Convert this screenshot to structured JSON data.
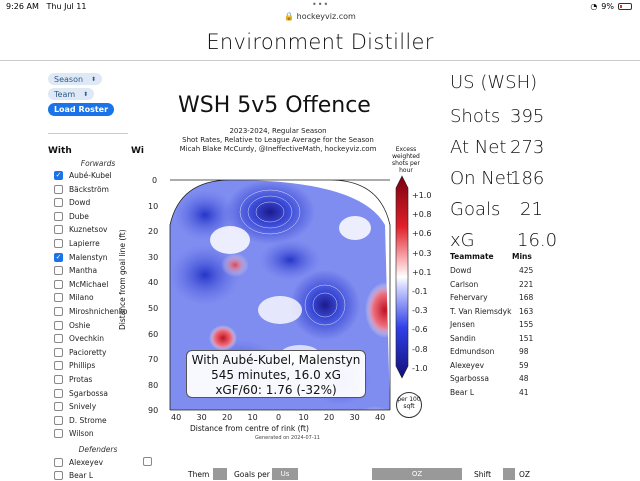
{
  "status": {
    "time": "9:26 AM",
    "date": "Thu Jul 11",
    "battery": "9%",
    "dots": "•••"
  },
  "browser": {
    "url": "hockeyviz.com"
  },
  "page": {
    "title": "Environment Distiller"
  },
  "controls": {
    "season": "Season",
    "team": "Team",
    "load_roster": "Load Roster"
  },
  "table_headers": {
    "with": "With",
    "without": "Wi"
  },
  "sections": {
    "forwards": "Forwards",
    "defenders": "Defenders"
  },
  "forwards": [
    {
      "name": "Aubé-Kubel",
      "checked": true
    },
    {
      "name": "Bäckström",
      "checked": false
    },
    {
      "name": "Dowd",
      "checked": false
    },
    {
      "name": "Dube",
      "checked": false
    },
    {
      "name": "Kuznetsov",
      "checked": false
    },
    {
      "name": "Lapierre",
      "checked": false
    },
    {
      "name": "Malenstyn",
      "checked": true
    },
    {
      "name": "Mantha",
      "checked": false
    },
    {
      "name": "McMichael",
      "checked": false
    },
    {
      "name": "Milano",
      "checked": false
    },
    {
      "name": "Miroshnichenko",
      "checked": false
    },
    {
      "name": "Oshie",
      "checked": false
    },
    {
      "name": "Ovechkin",
      "checked": false
    },
    {
      "name": "Pacioretty",
      "checked": false
    },
    {
      "name": "Phillips",
      "checked": false
    },
    {
      "name": "Protas",
      "checked": false
    },
    {
      "name": "Sgarbossa",
      "checked": false
    },
    {
      "name": "Snively",
      "checked": false
    },
    {
      "name": "D. Strome",
      "checked": false
    },
    {
      "name": "Wilson",
      "checked": false
    }
  ],
  "defenders": [
    {
      "name": "Alexeyev",
      "checked": false
    },
    {
      "name": "Bear L",
      "checked": false
    }
  ],
  "chart": {
    "title": "WSH 5v5 Offence",
    "subtitle1": "2023-2024, Regular Season",
    "subtitle2": "Shot Rates, Relative to League Average for the Season",
    "subtitle3": "Micah Blake McCurdy, @IneffectiveMath, hockeyviz.com",
    "cbar_title": "Excess weighted shots per hour",
    "ylabel": "Distance from goal line (ft)",
    "xlabel": "Distance from centre of rink (ft)",
    "generated": "Generated on 2024-07-11",
    "per100": "per 100 sqft",
    "info1": "With Aubé-Kubel, Malenstyn",
    "info2": "545 minutes, 16.0 xG",
    "info3": "xGF/60: 1.76 (-32%)",
    "colors": {
      "positive": "#d7191c",
      "negative": "#2c3ef0",
      "neutral": "#ffffff"
    }
  },
  "chart_data": {
    "type": "heatmap",
    "title": "WSH 5v5 Offence",
    "xlabel": "Distance from centre of rink (ft)",
    "ylabel": "Distance from goal line (ft)",
    "x_ticks": [
      "40",
      "30",
      "20",
      "10",
      "0",
      "10",
      "20",
      "30",
      "40"
    ],
    "y_ticks": [
      "0",
      "10",
      "20",
      "30",
      "40",
      "50",
      "60",
      "70",
      "80",
      "90"
    ],
    "colorbar_ticks": [
      "+1.0",
      "+0.8",
      "+0.6",
      "+0.3",
      "+0.1",
      "-0.1",
      "-0.3",
      "-0.6",
      "-0.8",
      "-1.0"
    ],
    "xlim": [
      -42.5,
      42.5
    ],
    "ylim": [
      0,
      90
    ]
  },
  "summary": {
    "team": "US (WSH)",
    "stats": [
      {
        "label": "Shots",
        "value": "395"
      },
      {
        "label": "At Net",
        "value": "273"
      },
      {
        "label": "On Net",
        "value": "186"
      },
      {
        "label": "Goals",
        "value": "21"
      },
      {
        "label": "xG",
        "value": "16.0"
      }
    ]
  },
  "teammates": {
    "header_name": "Teammate",
    "header_mins": "Mins",
    "rows": [
      {
        "name": "Dowd",
        "mins": "425"
      },
      {
        "name": "Carlson",
        "mins": "221"
      },
      {
        "name": "Fehervary",
        "mins": "168"
      },
      {
        "name": "T. Van Riemsdyk",
        "mins": "163"
      },
      {
        "name": "Jensen",
        "mins": "155"
      },
      {
        "name": "Sandin",
        "mins": "151"
      },
      {
        "name": "Edmundson",
        "mins": "98"
      },
      {
        "name": "Alexeyev",
        "mins": "59"
      },
      {
        "name": "Sgarbossa",
        "mins": "48"
      },
      {
        "name": "Bear L",
        "mins": "41"
      }
    ]
  },
  "bottom": {
    "them": "Them",
    "goals_per": "Goals per",
    "us": "Us",
    "oz": "OZ",
    "shift": "Shift",
    "oz2": "OZ"
  }
}
